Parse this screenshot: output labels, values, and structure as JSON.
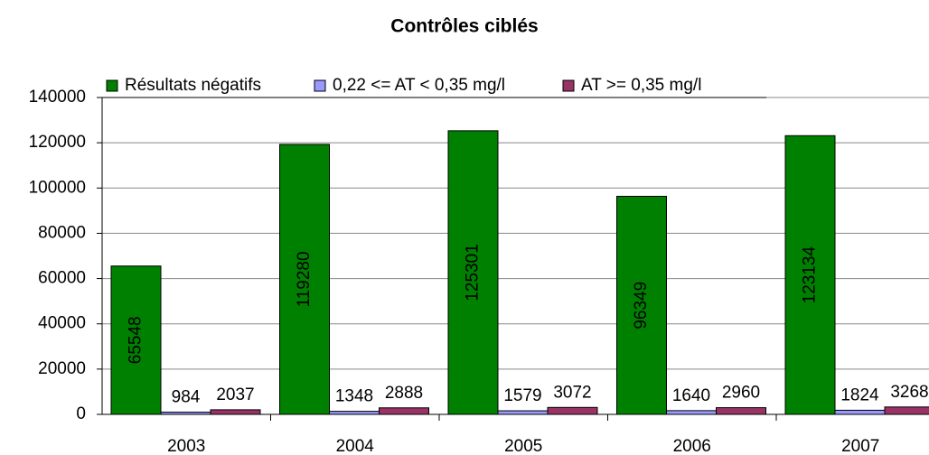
{
  "chart_data": {
    "type": "bar",
    "title": "Contrôles ciblés",
    "categories": [
      "2003",
      "2004",
      "2005",
      "2006",
      "2007"
    ],
    "series": [
      {
        "name": "Résultats négatifs",
        "color": "#008000",
        "values": [
          65548,
          119280,
          125301,
          96349,
          123134
        ]
      },
      {
        "name": "0,22 <= AT < 0,35 mg/l",
        "color": "#9999ff",
        "values": [
          984,
          1348,
          1579,
          1640,
          1824
        ]
      },
      {
        "name": "AT >= 0,35 mg/l",
        "color": "#993366",
        "values": [
          2037,
          2888,
          3072,
          2960,
          3268
        ]
      }
    ],
    "ylim": [
      0,
      140000
    ],
    "yticks": [
      0,
      20000,
      40000,
      60000,
      80000,
      100000,
      120000,
      140000
    ],
    "grid": true
  }
}
